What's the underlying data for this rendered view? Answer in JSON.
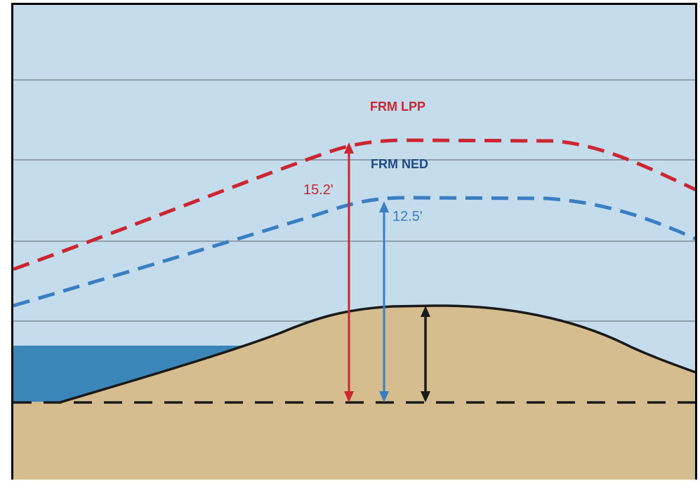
{
  "diagram": {
    "lines": {
      "lpp_label": "FRM LPP",
      "ned_label": "FRM NED"
    },
    "measurements": {
      "lpp_height": "15.2'",
      "ned_height": "12.5'"
    },
    "colors": {
      "sky": "#c4dcec",
      "grid": "#6f7d86",
      "water": "#3a86b9",
      "sand": "#d6bd90",
      "lpp": "#cc2631",
      "ned": "#3a7fc3",
      "ned_label": "#1c4b86",
      "ground_line": "#1a1a1a"
    }
  }
}
